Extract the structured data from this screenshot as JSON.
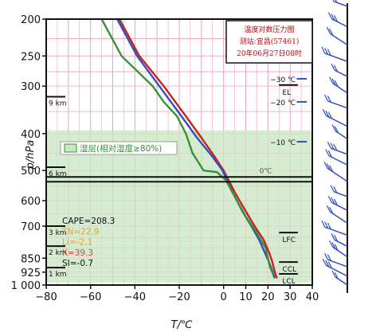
{
  "chart_data": {
    "type": "line",
    "title": "温度对数压力图",
    "subtitle_station": "测站:宜昌(57461)",
    "subtitle_time": "20年06月27日08时",
    "xlabel": "T/℃",
    "ylabel": "p/hPa",
    "xlim": [
      -80,
      40
    ],
    "ylim": [
      1000,
      200
    ],
    "y_scale": "log",
    "x_ticks": [
      -80,
      -60,
      -40,
      -20,
      0,
      10,
      20,
      30,
      40
    ],
    "x_tick_labels": [
      "−80",
      "−60",
      "−40",
      "−20",
      "0",
      "10",
      "20",
      "30",
      "40"
    ],
    "y_ticks": [
      200,
      250,
      300,
      400,
      500,
      600,
      700,
      850,
      925,
      1000
    ],
    "y_tick_labels": [
      "200",
      "250",
      "300",
      "400",
      "500",
      "600",
      "700",
      "850",
      "925",
      "1 000"
    ],
    "grid": true,
    "grid_color": "#f0a0b8",
    "moist_layer": {
      "label": "湿层(相对湿度≥80%)",
      "p_top": 392,
      "p_bottom": 985,
      "color": "#c8e6c0"
    },
    "series": [
      {
        "color": "#cc2020",
        "points": [
          [
            -47,
            200
          ],
          [
            -38,
            250
          ],
          [
            -27,
            300
          ],
          [
            -17,
            360
          ],
          [
            -10,
            410
          ],
          [
            -4,
            460
          ],
          [
            0,
            500
          ],
          [
            5,
            570
          ],
          [
            10,
            640
          ],
          [
            14,
            700
          ],
          [
            18,
            760
          ],
          [
            20.5,
            820
          ],
          [
            22,
            870
          ],
          [
            23,
            920
          ],
          [
            24,
            960
          ]
        ]
      },
      {
        "color": "#3050c0",
        "points": [
          [
            -48,
            200
          ],
          [
            -39,
            250
          ],
          [
            -29,
            300
          ],
          [
            -19,
            360
          ],
          [
            -12,
            410
          ],
          [
            -5,
            460
          ],
          [
            -0.5,
            500
          ],
          [
            4,
            570
          ],
          [
            8.5,
            640
          ],
          [
            12.5,
            700
          ],
          [
            16,
            760
          ],
          [
            18.5,
            820
          ],
          [
            20.5,
            870
          ],
          [
            22,
            920
          ],
          [
            23,
            960
          ]
        ]
      },
      {
        "color": "#3a8f3a",
        "points": [
          [
            -55,
            200
          ],
          [
            -46,
            250
          ],
          [
            -32,
            300
          ],
          [
            -27,
            330
          ],
          [
            -21,
            360
          ],
          [
            -17,
            400
          ],
          [
            -14,
            450
          ],
          [
            -9,
            500
          ],
          [
            -3,
            505
          ],
          [
            1,
            530
          ],
          [
            6,
            600
          ],
          [
            10,
            660
          ],
          [
            15,
            730
          ],
          [
            19,
            800
          ],
          [
            20,
            850
          ],
          [
            21,
            900
          ],
          [
            22.5,
            940
          ]
        ]
      }
    ],
    "isotherm_marks": [
      {
        "label": "−30 ℃",
        "p": 287
      },
      {
        "label": "−20 ℃",
        "p": 330
      },
      {
        "label": "−10 ℃",
        "p": 420
      }
    ],
    "level_labels": [
      {
        "label": "EL",
        "p": 298
      },
      {
        "label": "LFC",
        "p": 728
      },
      {
        "label": "CCL",
        "p": 870
      },
      {
        "label": "LCL",
        "p": 935
      }
    ],
    "zero_level_label": "0℃",
    "height_marks": [
      {
        "label": "9 km",
        "p": 320
      },
      {
        "label": "6 km",
        "p": 490
      },
      {
        "label": "3 km",
        "p": 700
      },
      {
        "label": "2 km",
        "p": 790
      },
      {
        "label": "1 km",
        "p": 900
      }
    ],
    "black_lines_p": [
      520,
      535
    ],
    "indices": [
      {
        "label": "CAPE=208.3",
        "color": "#111111"
      },
      {
        "label": "TN=22.9",
        "color": "#e8a030"
      },
      {
        "label": "LI=-2.1",
        "color": "#e8a030"
      },
      {
        "label": "K=39.3",
        "color": "#e04040"
      },
      {
        "label": "SI=-0.7",
        "color": "#111111"
      }
    ],
    "wind_profile": {
      "color": "#3050c0",
      "p_levels": [
        200,
        225,
        250,
        275,
        300,
        330,
        360,
        400,
        430,
        470,
        500,
        550,
        600,
        650,
        700,
        750,
        800,
        850,
        900,
        950,
        1000
      ]
    }
  }
}
